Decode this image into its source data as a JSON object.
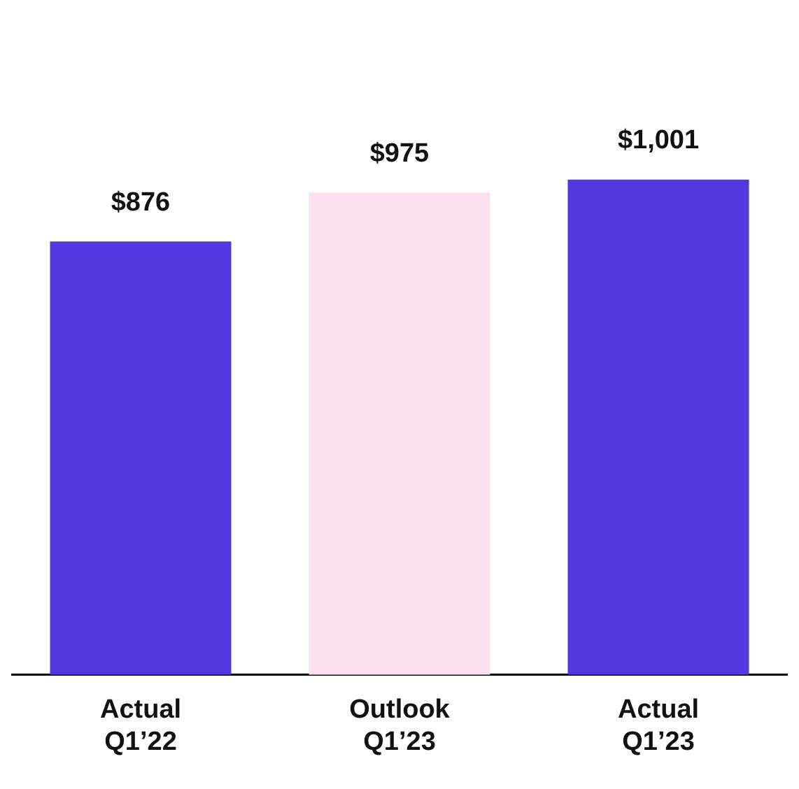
{
  "chart_data": {
    "type": "bar",
    "categories": [
      "Actual Q1’22",
      "Outlook Q1’23",
      "Actual Q1’23"
    ],
    "values": [
      876,
      975,
      1001
    ],
    "colors": [
      "#5138e0",
      "#fde0f0",
      "#5138e0"
    ],
    "value_labels": [
      "$876",
      "$975",
      "$1,001"
    ],
    "grid": false,
    "legend": false,
    "tick_labels": "x"
  }
}
